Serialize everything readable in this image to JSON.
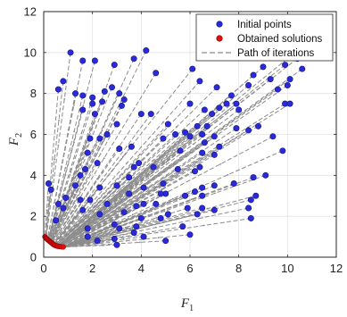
{
  "chart_data": {
    "type": "scatter",
    "xlabel": "F",
    "xlabel_sub": "1",
    "ylabel": "F",
    "ylabel_sub": "2",
    "xlim": [
      0,
      12
    ],
    "ylim": [
      0,
      12
    ],
    "xticks": [
      0,
      2,
      4,
      6,
      8,
      10,
      12
    ],
    "yticks": [
      0,
      2,
      4,
      6,
      8,
      10,
      12
    ],
    "grid": true,
    "legend_position": "top-right",
    "legend": [
      {
        "label": "Initial points",
        "color": "#0000ff",
        "marker": "circle"
      },
      {
        "label": "Obtained solutions",
        "color": "#ff0000",
        "marker": "circle"
      },
      {
        "label": "Path of iterations",
        "color": "#808080",
        "marker": "dashed-line"
      }
    ],
    "colors": {
      "initial": "#2a2ad8",
      "solution": "#e01010",
      "path": "#8c8c8c"
    },
    "series": [
      {
        "name": "Initial points",
        "points": [
          [
            1.1,
            10.0
          ],
          [
            1.6,
            9.6
          ],
          [
            2.1,
            9.6
          ],
          [
            0.8,
            8.6
          ],
          [
            0.6,
            8.2
          ],
          [
            1.3,
            8.0
          ],
          [
            1.6,
            7.9
          ],
          [
            2.4,
            7.6
          ],
          [
            2.0,
            7.5
          ],
          [
            1.6,
            7.2
          ],
          [
            2.1,
            7.0
          ],
          [
            2.0,
            7.8
          ],
          [
            2.5,
            8.1
          ],
          [
            2.8,
            8.3
          ],
          [
            2.9,
            9.4
          ],
          [
            3.1,
            8.0
          ],
          [
            3.3,
            7.7
          ],
          [
            3.7,
            9.7
          ],
          [
            4.2,
            10.1
          ],
          [
            4.6,
            9.0
          ],
          [
            3.2,
            7.4
          ],
          [
            4.0,
            7.0
          ],
          [
            4.4,
            7.0
          ],
          [
            5.1,
            6.5
          ],
          [
            4.9,
            5.8
          ],
          [
            5.4,
            6.0
          ],
          [
            5.8,
            6.1
          ],
          [
            5.6,
            5.2
          ],
          [
            6.0,
            5.9
          ],
          [
            6.3,
            6.4
          ],
          [
            6.4,
            8.6
          ],
          [
            6.1,
            9.2
          ],
          [
            6.0,
            7.5
          ],
          [
            7.1,
            8.3
          ],
          [
            6.6,
            7.2
          ],
          [
            6.9,
            7.0
          ],
          [
            6.7,
            6.4
          ],
          [
            6.5,
            6.0
          ],
          [
            7.2,
            7.3
          ],
          [
            7.5,
            7.5
          ],
          [
            7.7,
            7.9
          ],
          [
            7.9,
            7.5
          ],
          [
            8.0,
            7.2
          ],
          [
            8.4,
            8.4
          ],
          [
            8.6,
            8.9
          ],
          [
            9.0,
            9.3
          ],
          [
            9.3,
            8.7
          ],
          [
            10.2,
            9.9
          ],
          [
            10.4,
            9.7
          ],
          [
            10.6,
            9.2
          ],
          [
            9.9,
            9.4
          ],
          [
            10.1,
            8.7
          ],
          [
            10.0,
            8.4
          ],
          [
            9.6,
            8.2
          ],
          [
            9.9,
            7.5
          ],
          [
            10.1,
            7.5
          ],
          [
            9.8,
            5.2
          ],
          [
            9.4,
            5.9
          ],
          [
            8.8,
            6.4
          ],
          [
            8.4,
            6.2
          ],
          [
            7.9,
            6.3
          ],
          [
            7.0,
            5.9
          ],
          [
            6.6,
            5.6
          ],
          [
            7.2,
            5.4
          ],
          [
            6.5,
            5.1
          ],
          [
            7.0,
            5.0
          ],
          [
            6.4,
            4.4
          ],
          [
            6.2,
            4.2
          ],
          [
            5.5,
            4.3
          ],
          [
            4.9,
            3.6
          ],
          [
            5.0,
            3.1
          ],
          [
            5.8,
            3.0
          ],
          [
            6.2,
            3.2
          ],
          [
            6.5,
            3.4
          ],
          [
            6.5,
            3.0
          ],
          [
            7.0,
            3.5
          ],
          [
            7.8,
            3.6
          ],
          [
            8.6,
            3.9
          ],
          [
            9.1,
            4.0
          ],
          [
            8.7,
            3.0
          ],
          [
            8.5,
            2.8
          ],
          [
            8.4,
            2.4
          ],
          [
            8.5,
            1.9
          ],
          [
            7.0,
            2.3
          ],
          [
            6.5,
            2.4
          ],
          [
            6.3,
            2.1
          ],
          [
            5.9,
            2.4
          ],
          [
            5.1,
            2.1
          ],
          [
            4.8,
            1.9
          ],
          [
            4.0,
            1.9
          ],
          [
            3.8,
            1.5
          ],
          [
            3.1,
            1.4
          ],
          [
            3.7,
            1.2
          ],
          [
            2.9,
            0.9
          ],
          [
            4.1,
            1.0
          ],
          [
            5.0,
            0.8
          ],
          [
            6.0,
            1.1
          ],
          [
            2.9,
            1.6
          ],
          [
            3.3,
            2.2
          ],
          [
            3.8,
            2.5
          ],
          [
            4.1,
            2.6
          ],
          [
            4.6,
            2.6
          ],
          [
            4.8,
            3.1
          ],
          [
            3.5,
            3.1
          ],
          [
            3.0,
            3.5
          ],
          [
            3.5,
            3.9
          ],
          [
            3.7,
            4.4
          ],
          [
            3.9,
            4.6
          ],
          [
            4.5,
            4.4
          ],
          [
            3.6,
            5.4
          ],
          [
            3.1,
            5.3
          ],
          [
            3.0,
            6.5
          ],
          [
            2.6,
            6.0
          ],
          [
            2.3,
            5.8
          ],
          [
            1.9,
            5.8
          ],
          [
            1.8,
            5.1
          ],
          [
            2.2,
            4.6
          ],
          [
            1.7,
            4.3
          ],
          [
            1.5,
            4.0
          ],
          [
            1.3,
            3.5
          ],
          [
            1.5,
            2.8
          ],
          [
            1.9,
            2.8
          ],
          [
            1.6,
            2.3
          ],
          [
            0.9,
            2.9
          ],
          [
            0.6,
            2.6
          ],
          [
            0.8,
            2.4
          ],
          [
            0.2,
            3.6
          ],
          [
            0.3,
            3.3
          ],
          [
            0.5,
            1.8
          ],
          [
            1.8,
            1.4
          ],
          [
            2.3,
            2.1
          ],
          [
            2.6,
            2.6
          ],
          [
            2.3,
            3.4
          ],
          [
            4.1,
            3.4
          ],
          [
            3.0,
            0.6
          ],
          [
            1.8,
            1.0
          ],
          [
            2.2,
            0.8
          ],
          [
            5.7,
            1.5
          ]
        ]
      },
      {
        "name": "Obtained solutions",
        "points": [
          [
            0.05,
            1.0
          ],
          [
            0.08,
            0.95
          ],
          [
            0.1,
            0.92
          ],
          [
            0.12,
            0.9
          ],
          [
            0.15,
            0.87
          ],
          [
            0.18,
            0.84
          ],
          [
            0.2,
            0.82
          ],
          [
            0.22,
            0.8
          ],
          [
            0.25,
            0.77
          ],
          [
            0.28,
            0.74
          ],
          [
            0.3,
            0.72
          ],
          [
            0.32,
            0.7
          ],
          [
            0.35,
            0.67
          ],
          [
            0.38,
            0.64
          ],
          [
            0.4,
            0.62
          ],
          [
            0.43,
            0.6
          ],
          [
            0.46,
            0.58
          ],
          [
            0.5,
            0.56
          ],
          [
            0.55,
            0.54
          ],
          [
            0.6,
            0.53
          ],
          [
            0.65,
            0.52
          ],
          [
            0.72,
            0.51
          ],
          [
            0.8,
            0.5
          ]
        ]
      }
    ]
  }
}
